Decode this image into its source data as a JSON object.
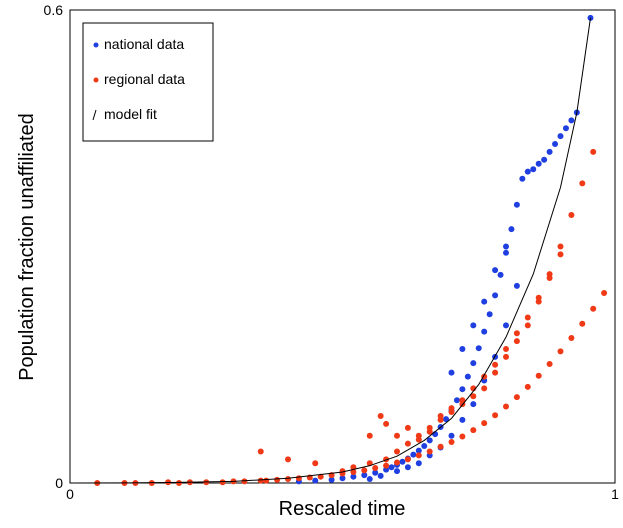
{
  "chart_data": {
    "type": "scatter",
    "title": "",
    "xlabel": "Rescaled time",
    "ylabel": "Population fraction unaffiliated",
    "xlim": [
      0,
      1
    ],
    "ylim": [
      0,
      0.6
    ],
    "x_ticks": [
      {
        "value": 0,
        "label": "0"
      },
      {
        "value": 1,
        "label": "1"
      }
    ],
    "y_ticks": [
      {
        "value": 0,
        "label": "0"
      },
      {
        "value": 0.6,
        "label": "0.6"
      }
    ],
    "grid": false,
    "legend": {
      "placement": "top-left",
      "entries": [
        {
          "label": "national data",
          "series": "national"
        },
        {
          "label": "regional data",
          "series": "regional"
        },
        {
          "label": "model fit",
          "series": "model"
        }
      ]
    },
    "series": [
      {
        "key": "national",
        "name": "national data",
        "kind": "points",
        "color": "#1f3fe0",
        "points": [
          [
            0.42,
            0.002
          ],
          [
            0.45,
            0.003
          ],
          [
            0.48,
            0.004
          ],
          [
            0.5,
            0.006
          ],
          [
            0.52,
            0.008
          ],
          [
            0.54,
            0.01
          ],
          [
            0.56,
            0.013
          ],
          [
            0.58,
            0.017
          ],
          [
            0.59,
            0.02
          ],
          [
            0.6,
            0.023
          ],
          [
            0.61,
            0.027
          ],
          [
            0.62,
            0.031
          ],
          [
            0.63,
            0.036
          ],
          [
            0.64,
            0.041
          ],
          [
            0.65,
            0.047
          ],
          [
            0.66,
            0.054
          ],
          [
            0.67,
            0.062
          ],
          [
            0.68,
            0.071
          ],
          [
            0.69,
            0.081
          ],
          [
            0.7,
            0.092
          ],
          [
            0.71,
            0.105
          ],
          [
            0.72,
            0.119
          ],
          [
            0.73,
            0.135
          ],
          [
            0.74,
            0.152
          ],
          [
            0.75,
            0.171
          ],
          [
            0.76,
            0.192
          ],
          [
            0.77,
            0.214
          ],
          [
            0.78,
            0.238
          ],
          [
            0.79,
            0.264
          ],
          [
            0.8,
            0.292
          ],
          [
            0.81,
            0.322
          ],
          [
            0.82,
            0.353
          ],
          [
            0.83,
            0.386
          ],
          [
            0.84,
            0.395
          ],
          [
            0.85,
            0.398
          ],
          [
            0.86,
            0.405
          ],
          [
            0.87,
            0.41
          ],
          [
            0.88,
            0.42
          ],
          [
            0.89,
            0.43
          ],
          [
            0.9,
            0.44
          ],
          [
            0.91,
            0.45
          ],
          [
            0.92,
            0.46
          ],
          [
            0.93,
            0.47
          ],
          [
            0.955,
            0.59
          ],
          [
            0.55,
            0.005
          ],
          [
            0.57,
            0.009
          ],
          [
            0.6,
            0.015
          ],
          [
            0.62,
            0.02
          ],
          [
            0.64,
            0.025
          ],
          [
            0.66,
            0.035
          ],
          [
            0.68,
            0.045
          ],
          [
            0.7,
            0.06
          ],
          [
            0.72,
            0.08
          ],
          [
            0.74,
            0.1
          ],
          [
            0.76,
            0.13
          ],
          [
            0.78,
            0.16
          ],
          [
            0.8,
            0.2
          ],
          [
            0.82,
            0.25
          ],
          [
            0.7,
            0.14
          ],
          [
            0.72,
            0.17
          ],
          [
            0.74,
            0.2
          ],
          [
            0.76,
            0.23
          ],
          [
            0.78,
            0.27
          ],
          [
            0.8,
            0.3
          ]
        ]
      },
      {
        "key": "regional",
        "name": "regional data",
        "kind": "points",
        "color": "#f03a17",
        "points": [
          [
            0.05,
            0.0
          ],
          [
            0.1,
            0.0
          ],
          [
            0.12,
            0.0
          ],
          [
            0.15,
            0.0
          ],
          [
            0.18,
            0.001
          ],
          [
            0.2,
            0.0
          ],
          [
            0.22,
            0.001
          ],
          [
            0.25,
            0.001
          ],
          [
            0.28,
            0.001
          ],
          [
            0.3,
            0.002
          ],
          [
            0.32,
            0.002
          ],
          [
            0.35,
            0.003
          ],
          [
            0.36,
            0.003
          ],
          [
            0.38,
            0.004
          ],
          [
            0.4,
            0.005
          ],
          [
            0.42,
            0.006
          ],
          [
            0.44,
            0.007
          ],
          [
            0.46,
            0.008
          ],
          [
            0.48,
            0.01
          ],
          [
            0.5,
            0.012
          ],
          [
            0.52,
            0.014
          ],
          [
            0.54,
            0.016
          ],
          [
            0.56,
            0.019
          ],
          [
            0.58,
            0.022
          ],
          [
            0.6,
            0.026
          ],
          [
            0.62,
            0.03
          ],
          [
            0.64,
            0.035
          ],
          [
            0.66,
            0.04
          ],
          [
            0.68,
            0.046
          ],
          [
            0.7,
            0.052
          ],
          [
            0.72,
            0.059
          ],
          [
            0.74,
            0.067
          ],
          [
            0.76,
            0.076
          ],
          [
            0.78,
            0.086
          ],
          [
            0.8,
            0.097
          ],
          [
            0.82,
            0.109
          ],
          [
            0.84,
            0.122
          ],
          [
            0.86,
            0.136
          ],
          [
            0.88,
            0.151
          ],
          [
            0.9,
            0.167
          ],
          [
            0.92,
            0.184
          ],
          [
            0.94,
            0.202
          ],
          [
            0.96,
            0.221
          ],
          [
            0.98,
            0.241
          ],
          [
            0.5,
            0.015
          ],
          [
            0.52,
            0.02
          ],
          [
            0.55,
            0.025
          ],
          [
            0.58,
            0.03
          ],
          [
            0.6,
            0.04
          ],
          [
            0.62,
            0.05
          ],
          [
            0.64,
            0.06
          ],
          [
            0.66,
            0.07
          ],
          [
            0.68,
            0.08
          ],
          [
            0.7,
            0.09
          ],
          [
            0.72,
            0.1
          ],
          [
            0.74,
            0.11
          ],
          [
            0.76,
            0.12
          ],
          [
            0.78,
            0.14
          ],
          [
            0.8,
            0.16
          ],
          [
            0.82,
            0.18
          ],
          [
            0.84,
            0.2
          ],
          [
            0.86,
            0.23
          ],
          [
            0.88,
            0.26
          ],
          [
            0.9,
            0.29
          ],
          [
            0.35,
            0.04
          ],
          [
            0.4,
            0.03
          ],
          [
            0.45,
            0.025
          ],
          [
            0.55,
            0.06
          ],
          [
            0.57,
            0.085
          ],
          [
            0.58,
            0.075
          ],
          [
            0.6,
            0.06
          ],
          [
            0.62,
            0.07
          ],
          [
            0.64,
            0.055
          ],
          [
            0.66,
            0.065
          ],
          [
            0.68,
            0.085
          ],
          [
            0.7,
            0.095
          ],
          [
            0.72,
            0.105
          ],
          [
            0.74,
            0.12
          ],
          [
            0.76,
            0.135
          ],
          [
            0.78,
            0.15
          ],
          [
            0.8,
            0.17
          ],
          [
            0.82,
            0.19
          ],
          [
            0.84,
            0.21
          ],
          [
            0.86,
            0.235
          ],
          [
            0.88,
            0.265
          ],
          [
            0.9,
            0.3
          ],
          [
            0.92,
            0.34
          ],
          [
            0.94,
            0.38
          ],
          [
            0.96,
            0.42
          ]
        ]
      },
      {
        "key": "model",
        "name": "model fit",
        "kind": "line",
        "color": "#000000",
        "points": [
          [
            0.0,
            0.0
          ],
          [
            0.1,
            0.0002
          ],
          [
            0.2,
            0.0008
          ],
          [
            0.3,
            0.002
          ],
          [
            0.4,
            0.006
          ],
          [
            0.5,
            0.014
          ],
          [
            0.55,
            0.022
          ],
          [
            0.6,
            0.034
          ],
          [
            0.65,
            0.054
          ],
          [
            0.7,
            0.082
          ],
          [
            0.75,
            0.125
          ],
          [
            0.8,
            0.185
          ],
          [
            0.85,
            0.265
          ],
          [
            0.9,
            0.375
          ],
          [
            0.93,
            0.47
          ],
          [
            0.955,
            0.59
          ]
        ]
      }
    ]
  }
}
